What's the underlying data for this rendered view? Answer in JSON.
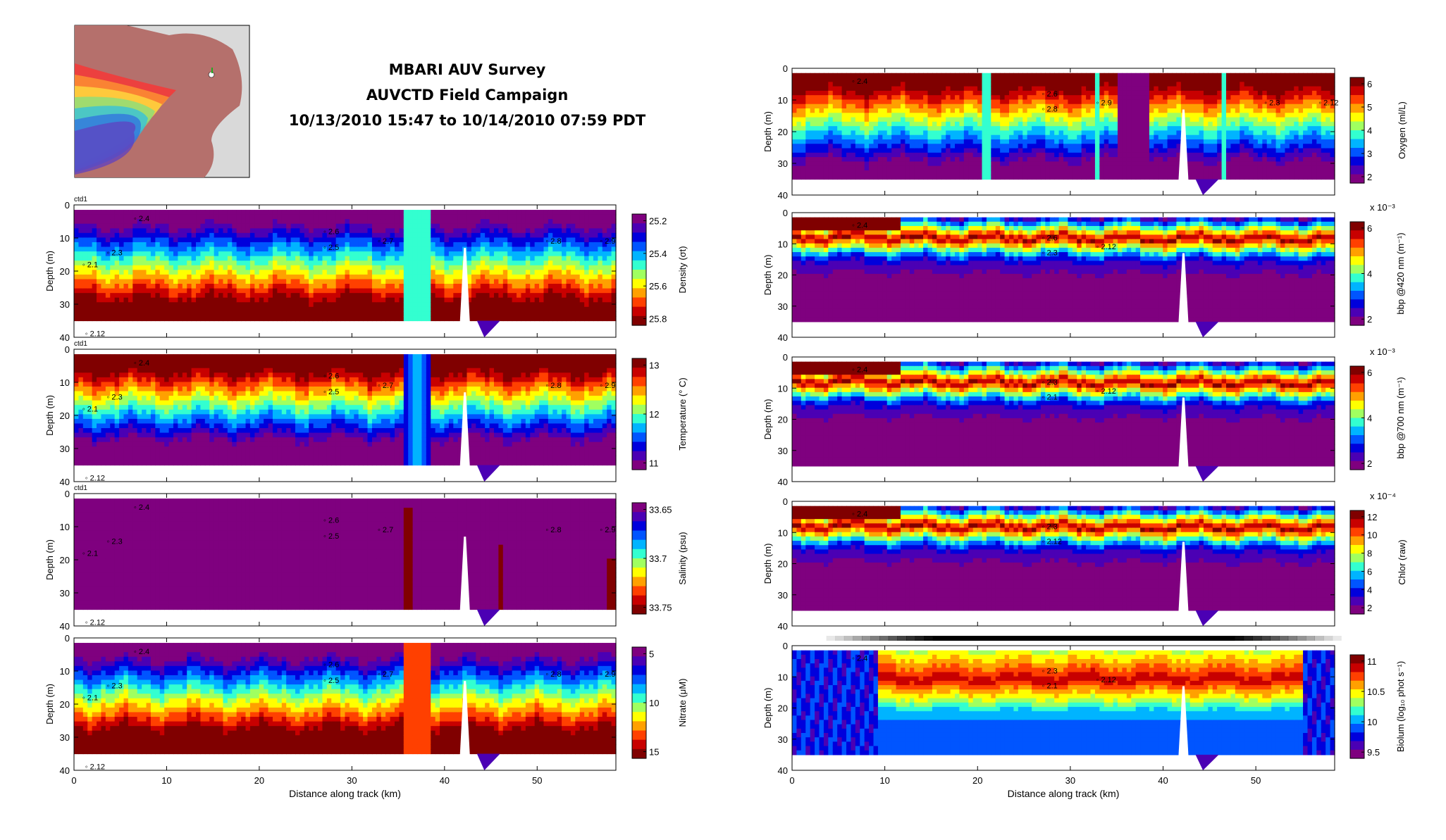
{
  "header": {
    "lines": [
      "MBARI AUV Survey",
      "AUVCTD Field Campaign",
      "10/13/2010 15:47 to 10/14/2010 07:59 PDT"
    ]
  },
  "colors": {
    "jet": [
      "#7f007f",
      "#4b00b4",
      "#0000dc",
      "#0055ff",
      "#00b4ff",
      "#33ffd0",
      "#a0ff60",
      "#ffff00",
      "#ffa000",
      "#ff4000",
      "#c80000",
      "#800000"
    ],
    "magenta": "#9e009e",
    "dark_red": "#800000",
    "red": "#ff2020"
  },
  "chart_data": [
    {
      "id": "density",
      "type": "heatmap",
      "ylabel": "Depth (m)",
      "xlabel": "",
      "annotation": "ctd1",
      "yticks": [
        0,
        10,
        20,
        30,
        40
      ],
      "ylim": [
        0,
        40
      ],
      "xlim": [
        0,
        58.5
      ],
      "xticks": [
        0,
        10,
        20,
        30,
        40,
        50
      ],
      "show_xticklabels": false,
      "colorbar": {
        "label": "Density (σt)",
        "ticks": [
          "25.2",
          "25.4",
          "25.6",
          "25.8"
        ],
        "reversed": true
      },
      "stations": [
        "2.4",
        "2.6",
        "2.5",
        "2.7",
        "2.8",
        "2.9",
        "2.3",
        "2.1",
        "2.12"
      ]
    },
    {
      "id": "temperature",
      "type": "heatmap",
      "ylabel": "Depth (m)",
      "xlabel": "",
      "annotation": "ctd1",
      "yticks": [
        0,
        10,
        20,
        30,
        40
      ],
      "ylim": [
        0,
        40
      ],
      "xlim": [
        0,
        58.5
      ],
      "xticks": [
        0,
        10,
        20,
        30,
        40,
        50
      ],
      "show_xticklabels": false,
      "colorbar": {
        "label": "Temperature (° C)",
        "ticks": [
          "13",
          "12",
          "11"
        ],
        "reversed": false
      },
      "stations": [
        "2.4",
        "2.6",
        "2.5",
        "2.7",
        "2.8",
        "2.9",
        "2.3",
        "2.1",
        "2.12"
      ]
    },
    {
      "id": "salinity",
      "type": "heatmap",
      "ylabel": "Depth (m)",
      "xlabel": "",
      "annotation": "ctd1",
      "yticks": [
        0,
        10,
        20,
        30,
        40
      ],
      "ylim": [
        0,
        40
      ],
      "xlim": [
        0,
        58.5
      ],
      "xticks": [
        0,
        10,
        20,
        30,
        40,
        50
      ],
      "show_xticklabels": false,
      "colorbar": {
        "label": "Salinity (psu)",
        "ticks": [
          "33.65",
          "33.7",
          "33.75"
        ],
        "reversed": true
      },
      "stations": [
        "2.4",
        "2.6",
        "2.5",
        "2.7",
        "2.8",
        "2.9",
        "2.3",
        "2.1",
        "2.12"
      ]
    },
    {
      "id": "nitrate",
      "type": "heatmap",
      "ylabel": "Depth (m)",
      "xlabel": "Distance along track (km)",
      "annotation": "",
      "yticks": [
        0,
        10,
        20,
        30,
        40
      ],
      "ylim": [
        0,
        40
      ],
      "xlim": [
        0,
        58.5
      ],
      "xticks": [
        0,
        10,
        20,
        30,
        40,
        50
      ],
      "show_xticklabels": true,
      "colorbar": {
        "label": "Nitrate (μM)",
        "ticks": [
          "5",
          "10",
          "15"
        ],
        "reversed": true
      },
      "stations": [
        "2.4",
        "2.6",
        "2.5",
        "2.7",
        "2.8",
        "2.9",
        "2.3",
        "2.1",
        "2.12"
      ]
    },
    {
      "id": "oxygen",
      "type": "heatmap",
      "ylabel": "Depth (m)",
      "xlabel": "",
      "annotation": "",
      "yticks": [
        0,
        10,
        20,
        30,
        40
      ],
      "ylim": [
        0,
        40
      ],
      "xlim": [
        0,
        58.5
      ],
      "xticks": [
        0,
        10,
        20,
        30,
        40,
        50
      ],
      "show_xticklabels": false,
      "colorbar": {
        "label": "Oxygen (ml/L)",
        "ticks": [
          "6",
          "5",
          "4",
          "3",
          "2"
        ],
        "reversed": false,
        "exponent": ""
      },
      "stations": [
        "2.4",
        "2.6",
        "2.8",
        "2.9",
        "2.3",
        "2.12"
      ]
    },
    {
      "id": "bbp420",
      "type": "heatmap",
      "ylabel": "Depth (m)",
      "xlabel": "",
      "annotation": "",
      "yticks": [
        0,
        10,
        20,
        30,
        40
      ],
      "ylim": [
        0,
        40
      ],
      "xlim": [
        0,
        58.5
      ],
      "xticks": [
        0,
        10,
        20,
        30,
        40,
        50
      ],
      "show_xticklabels": false,
      "colorbar": {
        "label": "bbp @420 nm (m⁻¹)",
        "ticks": [
          "6",
          "4",
          "2"
        ],
        "reversed": false,
        "exponent": "x 10⁻³"
      },
      "stations": [
        "2.4",
        "2.6",
        "2.3",
        "2.12"
      ]
    },
    {
      "id": "bbp700",
      "type": "heatmap",
      "ylabel": "Depth (m)",
      "xlabel": "",
      "annotation": "",
      "yticks": [
        0,
        10,
        20,
        30,
        40
      ],
      "ylim": [
        0,
        40
      ],
      "xlim": [
        0,
        58.5
      ],
      "xticks": [
        0,
        10,
        20,
        30,
        40,
        50
      ],
      "show_xticklabels": false,
      "colorbar": {
        "label": "bbp @700 nm (m⁻¹)",
        "ticks": [
          "6",
          "4",
          "2"
        ],
        "reversed": false,
        "exponent": "x 10⁻³"
      },
      "stations": [
        "2.4",
        "2.3",
        "2.1",
        "2.12"
      ]
    },
    {
      "id": "chlor",
      "type": "heatmap",
      "ylabel": "Depth (m)",
      "xlabel": "",
      "annotation": "",
      "yticks": [
        0,
        10,
        20,
        30,
        40
      ],
      "ylim": [
        0,
        40
      ],
      "xlim": [
        0,
        58.5
      ],
      "xticks": [
        0,
        10,
        20,
        30,
        40,
        50
      ],
      "show_xticklabels": false,
      "colorbar": {
        "label": "Chlor (raw)",
        "ticks": [
          "12",
          "10",
          "8",
          "6",
          "4",
          "2"
        ],
        "reversed": false,
        "exponent": "x 10⁻⁴"
      },
      "stations": [
        "2.4",
        "2.3",
        "2.12"
      ]
    },
    {
      "id": "biolum",
      "type": "heatmap",
      "ylabel": "Depth (m)",
      "xlabel": "Distance along track (km)",
      "annotation": "",
      "yticks": [
        0,
        10,
        20,
        30,
        40
      ],
      "ylim": [
        0,
        40
      ],
      "xlim": [
        0,
        58.5
      ],
      "xticks": [
        0,
        10,
        20,
        30,
        40,
        50
      ],
      "show_xticklabels": true,
      "colorbar": {
        "label": "Biolum (log₁₀ phot s⁻¹)",
        "ticks": [
          "11",
          "10.5",
          "10",
          "9.5"
        ],
        "reversed": false,
        "exponent": ""
      },
      "stations": [
        "2.4",
        "2.3",
        "2.1",
        "2.12"
      ]
    }
  ]
}
